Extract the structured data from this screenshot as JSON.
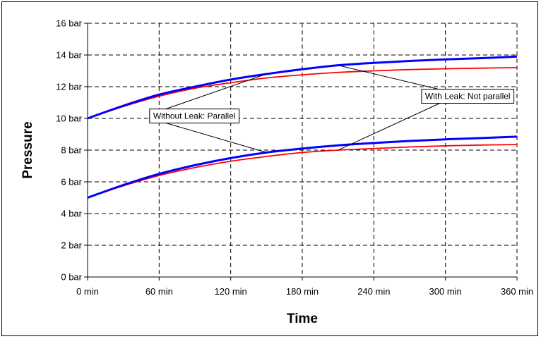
{
  "chart_data": {
    "type": "line",
    "title": "",
    "xlabel": "Time",
    "ylabel": "Pressure",
    "xlim": [
      0,
      360
    ],
    "ylim": [
      0,
      16
    ],
    "x_ticks": [
      0,
      60,
      120,
      180,
      240,
      300,
      360
    ],
    "x_tick_labels": [
      "0 min",
      "60 min",
      "120 min",
      "180 min",
      "240 min",
      "300 min",
      "360 min"
    ],
    "y_ticks": [
      0,
      2,
      4,
      6,
      8,
      10,
      12,
      14,
      16
    ],
    "y_tick_labels": [
      "0 bar",
      "2 bar",
      "4 bar",
      "6 bar",
      "8 bar",
      "10 bar",
      "12 bar",
      "14 bar",
      "16 bar"
    ],
    "grid": true,
    "x": [
      0,
      30,
      60,
      90,
      120,
      150,
      180,
      210,
      240,
      270,
      300,
      330,
      360
    ],
    "series": [
      {
        "color": "#0000ff",
        "values": [
          10.0,
          10.8,
          11.5,
          12.0,
          12.45,
          12.8,
          13.1,
          13.35,
          13.5,
          13.62,
          13.72,
          13.8,
          13.9
        ]
      },
      {
        "color": "#ff0000",
        "values": [
          10.0,
          10.75,
          11.4,
          11.9,
          12.25,
          12.55,
          12.75,
          12.9,
          13.0,
          13.08,
          13.13,
          13.17,
          13.2
        ]
      },
      {
        "color": "#0000ff",
        "values": [
          5.0,
          5.8,
          6.5,
          7.05,
          7.5,
          7.85,
          8.1,
          8.3,
          8.45,
          8.58,
          8.68,
          8.76,
          8.85
        ]
      },
      {
        "color": "#ff0000",
        "values": [
          5.0,
          5.75,
          6.4,
          6.9,
          7.3,
          7.6,
          7.85,
          8.0,
          8.1,
          8.2,
          8.27,
          8.32,
          8.35
        ]
      }
    ],
    "annotations": [
      {
        "text": "Without Leak: Parallel",
        "box_at": [
          52,
          10.15
        ],
        "pointers": [
          [
            150,
            12.8
          ],
          [
            150,
            7.85
          ]
        ]
      },
      {
        "text": "With Leak: Not parallel",
        "box_at": [
          280,
          11.4
        ],
        "pointers": [
          [
            210,
            13.35
          ],
          [
            210,
            8.0
          ]
        ]
      }
    ]
  }
}
